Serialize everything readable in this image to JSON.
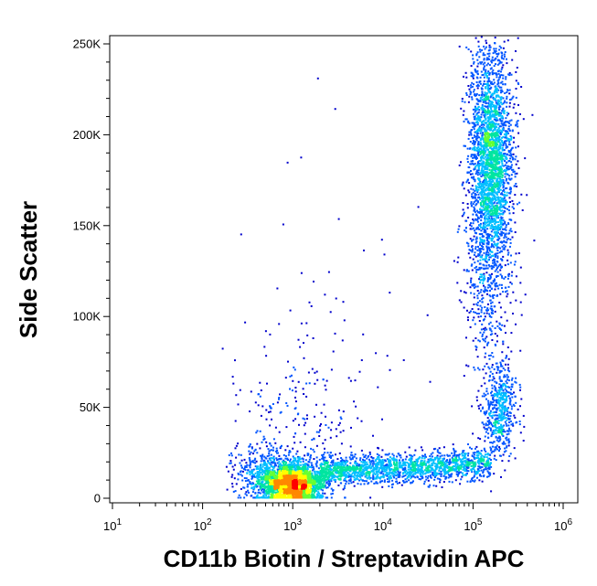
{
  "chart_data": {
    "type": "scatter",
    "style": "density-colored dot plot (blue low density → green → yellow → red high density)",
    "xlabel": "CD11b Biotin / Streptavidin APC",
    "ylabel": "Side Scatter",
    "x_scale": "log",
    "xlim": [
      10,
      1000000
    ],
    "x_ticks": [
      {
        "base": "10",
        "exp": "1",
        "value": 10
      },
      {
        "base": "10",
        "exp": "2",
        "value": 100
      },
      {
        "base": "10",
        "exp": "3",
        "value": 1000
      },
      {
        "base": "10",
        "exp": "4",
        "value": 10000
      },
      {
        "base": "10",
        "exp": "5",
        "value": 100000
      },
      {
        "base": "10",
        "exp": "6",
        "value": 1000000
      }
    ],
    "y_scale": "linear",
    "ylim": [
      0,
      255000
    ],
    "y_ticks": [
      {
        "label": "0",
        "value": 0
      },
      {
        "label": "50K",
        "value": 50000
      },
      {
        "label": "100K",
        "value": 100000
      },
      {
        "label": "150K",
        "value": 150000
      },
      {
        "label": "200K",
        "value": 200000
      },
      {
        "label": "250K",
        "value": 250000
      }
    ],
    "grid": false,
    "legend": "none",
    "density_colors": [
      "#0000cc",
      "#0055ff",
      "#00bfff",
      "#00e5a0",
      "#66ff33",
      "#ffff00",
      "#ff8800",
      "#ff0000"
    ],
    "populations": [
      {
        "name": "CD11b-negative cluster",
        "x_center": 1000,
        "y_center": 8000,
        "relative_density": "highest"
      },
      {
        "name": "intermediate band",
        "x_center": 30000,
        "y_center": 15000,
        "relative_density": "medium"
      },
      {
        "name": "CD11b-positive low SSC",
        "x_center": 200000,
        "y_center": 45000,
        "relative_density": "medium"
      },
      {
        "name": "CD11b-positive high SSC",
        "x_center": 150000,
        "y_center": 180000,
        "relative_density": "high"
      }
    ]
  }
}
